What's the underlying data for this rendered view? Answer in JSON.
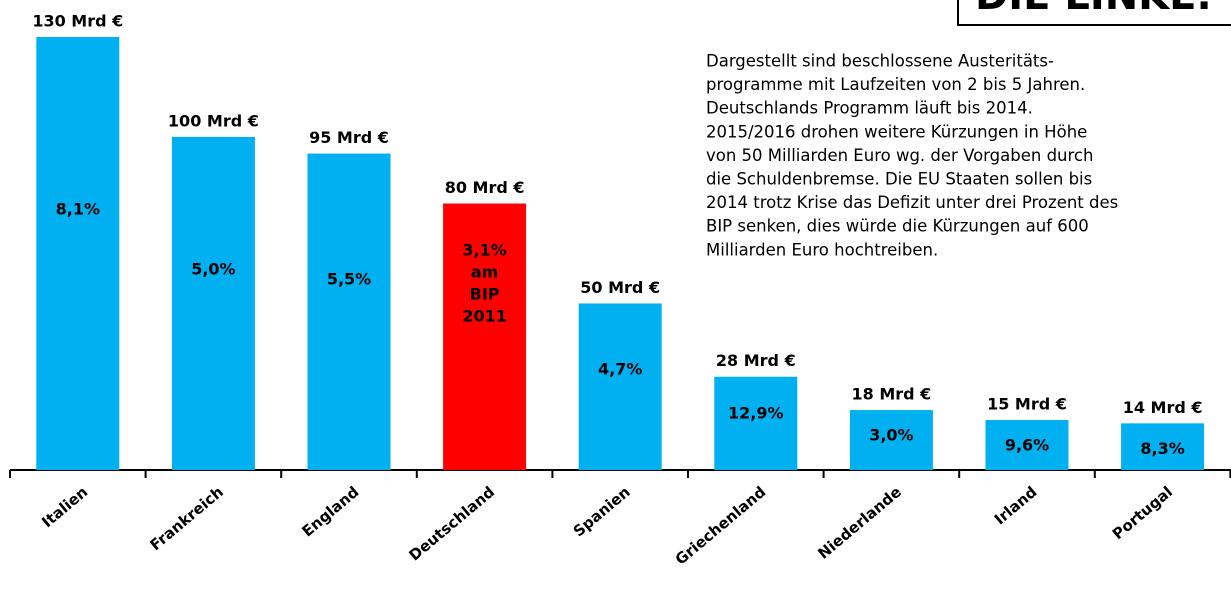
{
  "chart_data": {
    "type": "bar",
    "logo_text": "DIE LINKE.",
    "description": [
      "Dargestellt sind beschlossene Austeritäts-",
      "programme mit  Laufzeiten von 2 bis 5 Jahren.",
      "Deutschlands Programm läuft bis 2014.",
      "2015/2016 drohen weitere Kürzungen in Höhe",
      "von 50 Milliarden Euro wg. der Vorgaben durch",
      "die Schuldenbremse. Die EU Staaten sollen bis",
      "2014 trotz Krise das Defizit unter drei Prozent des",
      "BIP senken, dies würde die Kürzungen auf 600",
      "Milliarden Euro hochtreiben."
    ],
    "categories": [
      "Italien",
      "Frankreich",
      "England",
      "Deutschland",
      "Spanien",
      "Griechenland",
      "Niederlande",
      "Irland",
      "Portugal"
    ],
    "values": [
      130,
      100,
      95,
      80,
      50,
      28,
      18,
      15,
      14
    ],
    "value_labels": [
      "130 Mrd €",
      "100 Mrd €",
      "95 Mrd €",
      "80 Mrd €",
      "50 Mrd €",
      "28 Mrd €",
      "18 Mrd €",
      "15 Mrd €",
      "14 Mrd €"
    ],
    "inner_labels": [
      "8,1%",
      "5,0%",
      "5,5%",
      "3,1% am BIP 2011",
      "4,7%",
      "12,9%",
      "3,0%",
      "9,6%",
      "8,3%"
    ],
    "colors": [
      "#00b0f0",
      "#00b0f0",
      "#00b0f0",
      "#ff0000",
      "#00b0f0",
      "#00b0f0",
      "#00b0f0",
      "#00b0f0",
      "#00b0f0"
    ],
    "ylim": [
      0,
      130
    ]
  }
}
